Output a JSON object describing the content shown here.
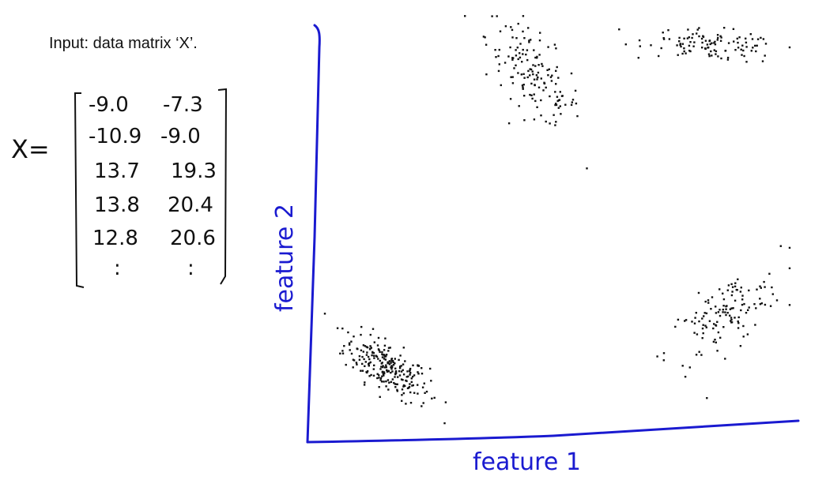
{
  "slide": {
    "caption": "Input: data matrix ‘X’.",
    "matrix_label": "X=",
    "matrix_rows": [
      [
        "-9.0",
        "-7.3"
      ],
      [
        "-10.9",
        "-9.0"
      ],
      [
        "13.7",
        "19.3"
      ],
      [
        "13.8",
        "20.4"
      ],
      [
        "12.8",
        "20.6"
      ]
    ],
    "matrix_ellipsis": [
      ":",
      ":"
    ]
  },
  "colors": {
    "ink": "#111111",
    "axis_blue": "#1a1ad0"
  },
  "chart_data": {
    "type": "scatter",
    "title": "",
    "xlabel": "feature 1",
    "ylabel": "feature 2",
    "clusters": [
      {
        "center": [
          0.14,
          0.15
        ],
        "count": 240,
        "spread": [
          0.045,
          0.05
        ]
      },
      {
        "center": [
          0.45,
          0.85
        ],
        "count": 150,
        "spread": [
          0.05,
          0.08
        ]
      },
      {
        "center": [
          0.83,
          0.92
        ],
        "count": 110,
        "spread": [
          0.07,
          0.03
        ]
      },
      {
        "center": [
          0.85,
          0.27
        ],
        "count": 130,
        "spread": [
          0.06,
          0.07
        ]
      }
    ],
    "xlim": [
      0,
      1
    ],
    "ylim": [
      0,
      1
    ],
    "grid": false,
    "legend": "none"
  }
}
